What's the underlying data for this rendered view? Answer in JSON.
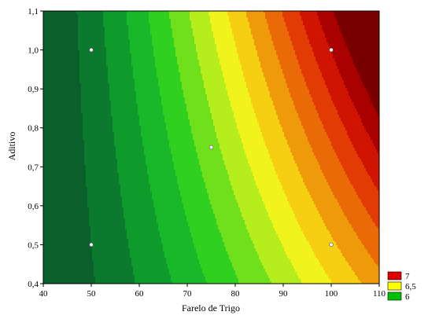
{
  "chart_data": {
    "type": "heatmap",
    "subtype": "contour",
    "title": "",
    "xlabel": "Farelo de Trigo",
    "ylabel": "Aditivo",
    "xlim": [
      40,
      110
    ],
    "ylim": [
      0.4,
      1.1
    ],
    "x_ticks": [
      "40",
      "50",
      "60",
      "70",
      "80",
      "90",
      "100",
      "110"
    ],
    "y_ticks": [
      "0,4",
      "0,5",
      "0,6",
      "0,7",
      "0,8",
      "0,9",
      "1,0",
      "1,1"
    ],
    "x_tick_values": [
      40,
      50,
      60,
      70,
      80,
      90,
      100,
      110
    ],
    "y_tick_values": [
      0.4,
      0.5,
      0.6,
      0.7,
      0.8,
      0.9,
      1.0,
      1.1
    ],
    "design_points": [
      {
        "x": 50,
        "y": 1.0
      },
      {
        "x": 100,
        "y": 1.0
      },
      {
        "x": 75,
        "y": 0.75
      },
      {
        "x": 50,
        "y": 0.5
      },
      {
        "x": 100,
        "y": 0.5
      }
    ],
    "legend": {
      "placement": "bottom-right",
      "entries": [
        {
          "label": "7",
          "color": "#e00000"
        },
        {
          "label": "6,5",
          "color": "#ffff00"
        },
        {
          "label": "6",
          "color": "#00c000"
        }
      ]
    },
    "color_scale": [
      "#0a5f2a",
      "#0b7a2e",
      "#0f9a2c",
      "#18b82a",
      "#2fd01f",
      "#70e01c",
      "#b5ee1c",
      "#f1f31c",
      "#f6cf12",
      "#ef9a0b",
      "#e96a06",
      "#e23b03",
      "#cf1402",
      "#a90000",
      "#7a0000"
    ],
    "grid": false
  }
}
